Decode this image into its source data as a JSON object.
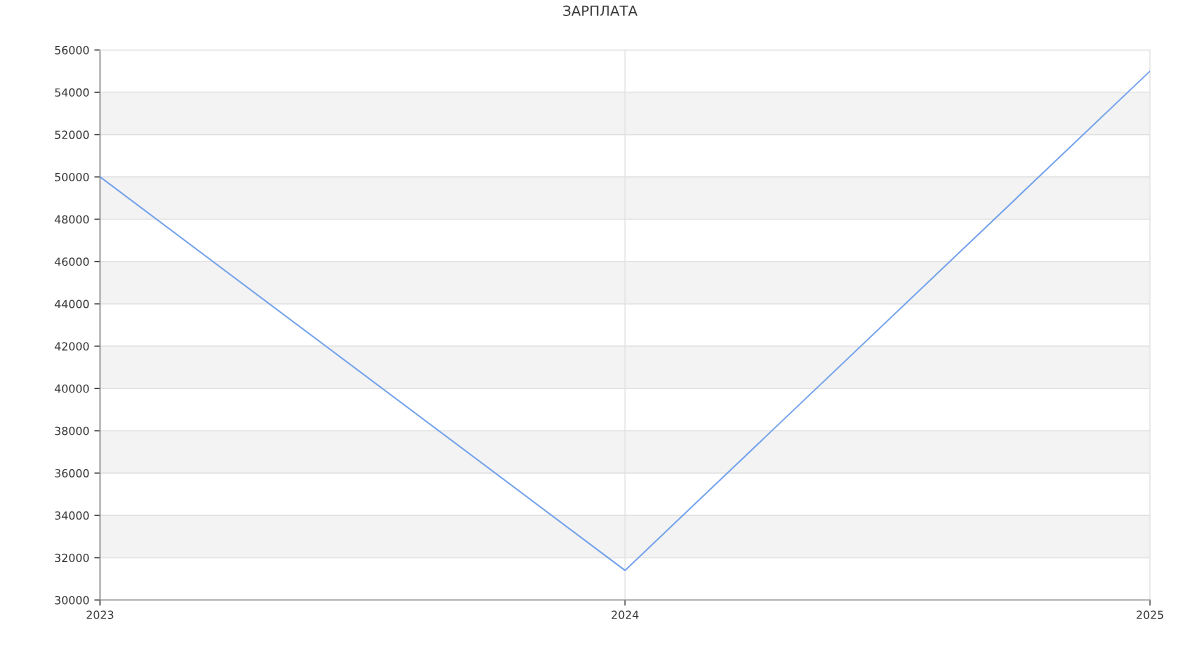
{
  "chart_data": {
    "type": "line",
    "title": "ЗАРПЛАТА",
    "x": [
      2023,
      2024,
      2025
    ],
    "series": [
      {
        "color": "#6d9eeb",
        "values": [
          50000,
          31400,
          55000
        ]
      }
    ],
    "xlim": [
      2023,
      2025
    ],
    "xticks": [
      2023,
      2024,
      2025
    ],
    "ylim": [
      30000,
      56000
    ],
    "yticks": [
      30000,
      32000,
      34000,
      36000,
      38000,
      40000,
      42000,
      44000,
      46000,
      48000,
      50000,
      52000,
      54000,
      56000
    ],
    "grid": true,
    "line_style": "solid"
  }
}
